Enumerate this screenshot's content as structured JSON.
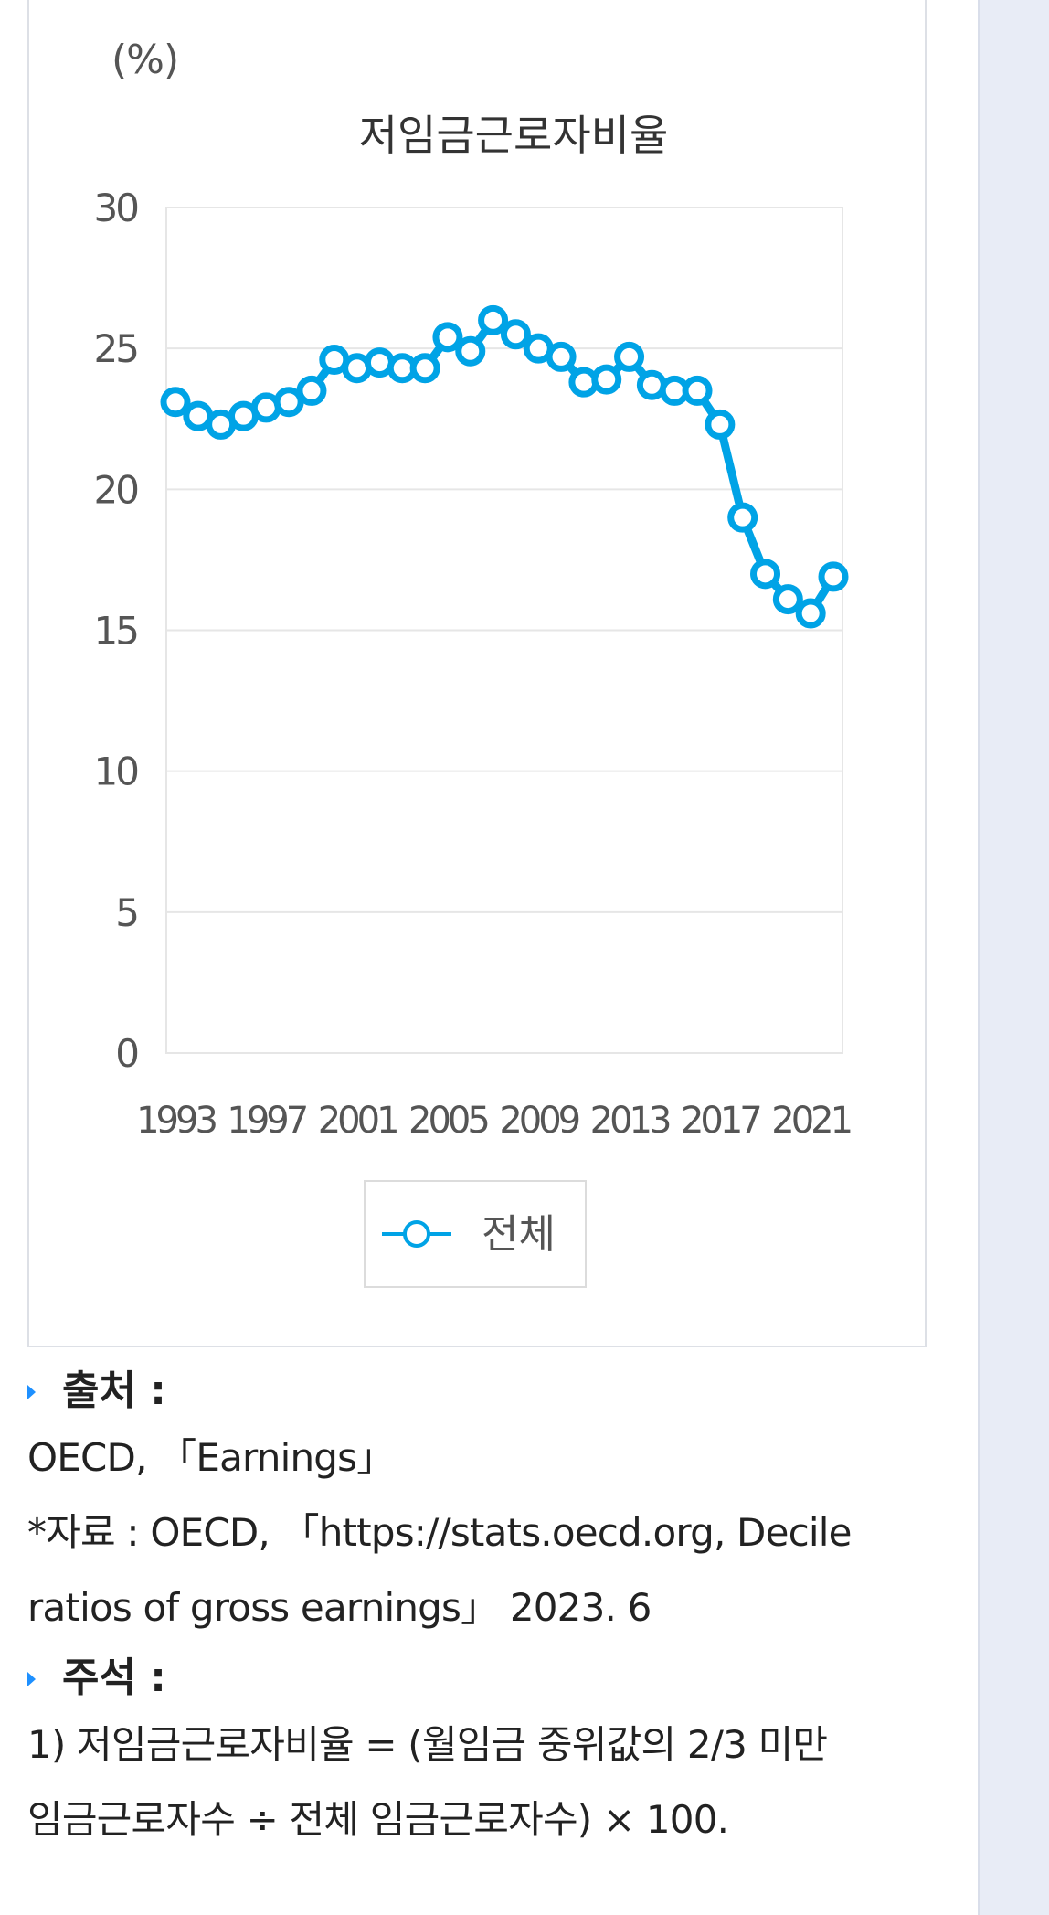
{
  "chart_data": {
    "type": "line",
    "unit": "(%)",
    "title": "저임금근로자비율",
    "x": [
      1993,
      1994,
      1995,
      1996,
      1997,
      1998,
      1999,
      2000,
      2001,
      2002,
      2003,
      2004,
      2005,
      2006,
      2007,
      2008,
      2009,
      2010,
      2011,
      2012,
      2013,
      2014,
      2015,
      2016,
      2017,
      2018,
      2019,
      2020,
      2021,
      2022
    ],
    "x_tick_labels": [
      "1993",
      "1997",
      "2001",
      "2005",
      "2009",
      "2013",
      "2017",
      "2021"
    ],
    "y_tick_labels": [
      "30",
      "25",
      "20",
      "15",
      "10",
      "5",
      "0"
    ],
    "ylim": [
      0,
      30
    ],
    "series": [
      {
        "name": "전체",
        "color": "#00a3e6",
        "values": [
          23.1,
          22.6,
          22.3,
          22.6,
          22.9,
          23.1,
          23.5,
          24.6,
          24.3,
          24.5,
          24.3,
          24.3,
          25.4,
          24.9,
          26.0,
          25.5,
          25.0,
          24.7,
          23.8,
          23.9,
          24.7,
          23.7,
          23.5,
          23.5,
          22.3,
          19.0,
          17.0,
          16.1,
          15.6,
          16.9
        ]
      }
    ],
    "grid": true,
    "legend_position": "bottom"
  },
  "source": {
    "heading": "출처 :",
    "lines": [
      "OECD, 「Earnings」",
      "*자료 : OECD, 「https://stats.oecd.org, Decile",
      "ratios of gross earnings」 2023. 6"
    ]
  },
  "footnote": {
    "heading": "주석 :",
    "lines": [
      "1) 저임금근로자비율 = (월임금 중위값의 2/3 미만",
      "임금근로자수 ÷ 전체 임금근로자수) × 100."
    ]
  }
}
